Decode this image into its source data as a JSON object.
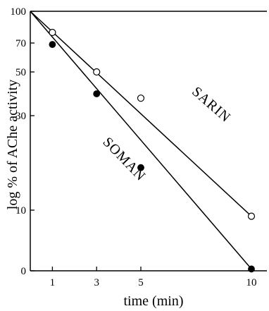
{
  "chart_data": {
    "type": "scatter",
    "xlabel": "time (min)",
    "ylabel": "log % of AChe activity",
    "xlim": [
      0,
      11
    ],
    "ylim": [
      0,
      100
    ],
    "x_ticks": [
      1,
      3,
      5,
      10
    ],
    "y_ticks": [
      {
        "value": 0,
        "label": "0"
      },
      {
        "value": 10,
        "label": "10"
      },
      {
        "value": 30,
        "label": "30"
      },
      {
        "value": 50,
        "label": "50"
      },
      {
        "value": 70,
        "label": "70"
      },
      {
        "value": 100,
        "label": "100"
      }
    ],
    "series": [
      {
        "name": "SARIN",
        "marker": "open-circle",
        "color": "#000000",
        "points": [
          {
            "x": 1,
            "y": 80
          },
          {
            "x": 3,
            "y": 50
          },
          {
            "x": 5,
            "y": 38
          },
          {
            "x": 10,
            "y": 9
          }
        ],
        "fit_line": [
          {
            "x": 0,
            "y": 100
          },
          {
            "x": 10,
            "y": 9
          }
        ]
      },
      {
        "name": "SOMAN",
        "marker": "filled-circle",
        "color": "#000000",
        "points": [
          {
            "x": 1,
            "y": 69
          },
          {
            "x": 3,
            "y": 40
          },
          {
            "x": 5,
            "y": 19
          },
          {
            "x": 10,
            "y": 0.3
          }
        ],
        "fit_line": [
          {
            "x": 0,
            "y": 100
          },
          {
            "x": 10,
            "y": 0.3
          }
        ]
      }
    ],
    "grid": false,
    "legend": "none"
  }
}
